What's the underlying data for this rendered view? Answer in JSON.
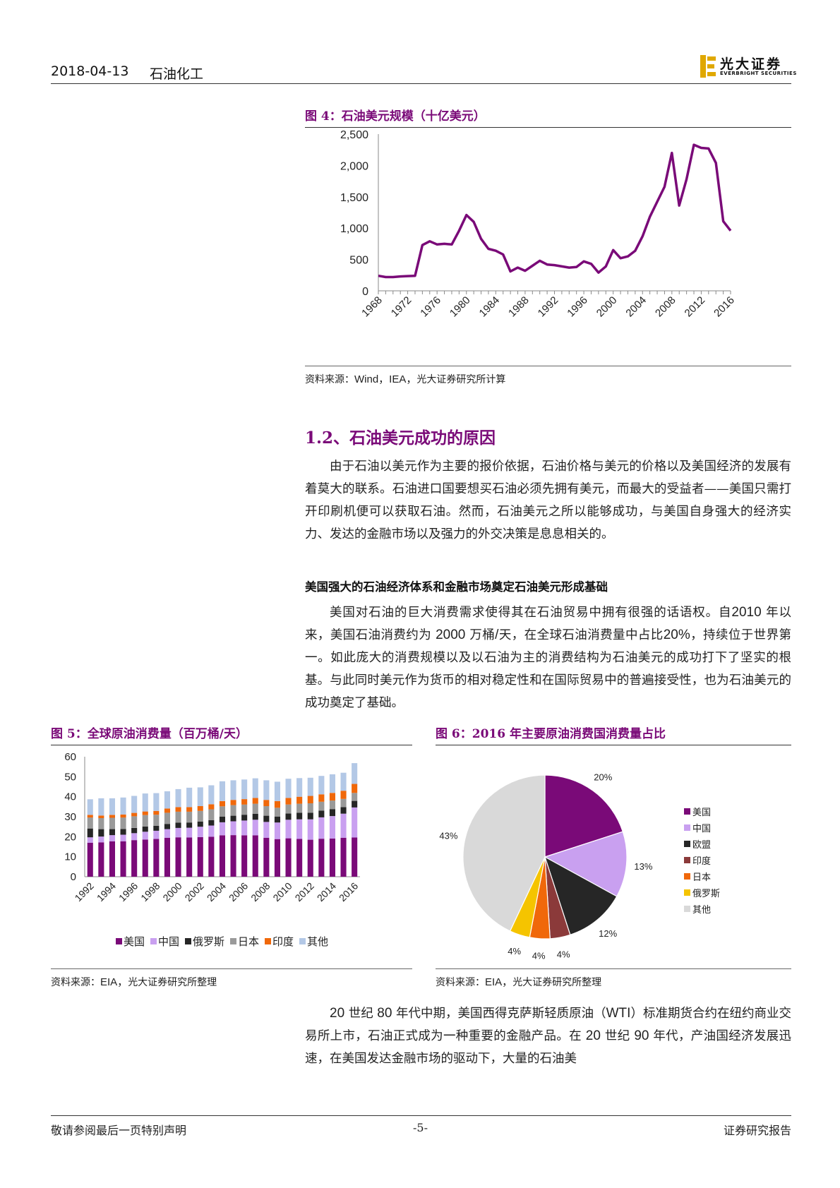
{
  "header": {
    "date": "2018-04-13",
    "sector": "石油化工",
    "logo_cn": "光大证券",
    "logo_en": "EVERBRIGHT SECURITIES"
  },
  "fig4": {
    "title": "图 4：石油美元规模（十亿美元）",
    "source_label": "资料来源：",
    "source_lat": "Wind，IEA，",
    "source_rest": "光大证券研究所计算",
    "chart_data": {
      "type": "line",
      "title": "",
      "xlabel": "",
      "ylabel": "",
      "ylim": [
        0,
        2500
      ],
      "yticks": [
        "0",
        "500",
        "1,000",
        "1,500",
        "2,000",
        "2,500"
      ],
      "xticks": [
        "1968",
        "1972",
        "1976",
        "1980",
        "1984",
        "1988",
        "1992",
        "1996",
        "2000",
        "2004",
        "2008",
        "2012",
        "2016"
      ],
      "color": "#7a0a78",
      "x": [
        1968,
        1969,
        1970,
        1971,
        1972,
        1973,
        1974,
        1975,
        1976,
        1977,
        1978,
        1979,
        1980,
        1981,
        1982,
        1983,
        1984,
        1985,
        1986,
        1987,
        1988,
        1989,
        1990,
        1991,
        1992,
        1993,
        1994,
        1995,
        1996,
        1997,
        1998,
        1999,
        2000,
        2001,
        2002,
        2003,
        2004,
        2005,
        2006,
        2007,
        2008,
        2009,
        2010,
        2011,
        2012,
        2013,
        2014,
        2015,
        2016
      ],
      "values": [
        240,
        220,
        220,
        230,
        235,
        240,
        730,
        790,
        740,
        750,
        740,
        960,
        1210,
        1100,
        830,
        670,
        640,
        580,
        310,
        370,
        320,
        400,
        480,
        420,
        410,
        390,
        370,
        380,
        470,
        430,
        290,
        390,
        650,
        520,
        550,
        640,
        870,
        1180,
        1420,
        1660,
        2200,
        1360,
        1780,
        2330,
        2280,
        2270,
        2040,
        1110,
        960
      ]
    }
  },
  "section": {
    "heading": "1.2、石油美元成功的原因",
    "para1": "由于石油以美元作为主要的报价依据，石油价格与美元的价格以及美国经济的发展有着莫大的联系。石油进口国要想买石油必须先拥有美元，而最大的受益者——美国只需打开印刷机便可以获取石油。然而，石油美元之所以能够成功，与美国自身强大的经济实力、发达的金融市场以及强力的外交决策是息息相关的。",
    "subheading": "美国强大的石油经济体系和金融市场奠定石油美元形成基础",
    "para2_a": "美国对石油的巨大消费需求使得其在石油贸易中拥有很强的话语权。自",
    "para2_b": "2010",
    "para2_c": " 年以来，美国石油消费约为 ",
    "para2_d": "2000",
    "para2_e": " 万桶",
    "para2_f": "/",
    "para2_g": "天，在全球石油消费量中占比",
    "para2_h": "20%",
    "para2_i": "，持续位于世界第一。如此庞大的消费规模以及以石油为主的消费结构为石油美元的成功打下了坚实的根基。与此同时美元作为货币的相对稳定性和在国际贸易中的普遍接受性，也为石油美元的成功奠定了基础。"
  },
  "fig5": {
    "title": "图 5：全球原油消费量（百万桶/天）",
    "source_label": "资料来源：",
    "source_lat": "EIA，",
    "source_rest": "光大证券研究所整理",
    "chart_data": {
      "type": "bar",
      "stacked": true,
      "ylim": [
        0,
        60
      ],
      "yticks": [
        "0",
        "10",
        "20",
        "30",
        "40",
        "50",
        "60"
      ],
      "categories": [
        "1992",
        "1993",
        "1994",
        "1995",
        "1996",
        "1997",
        "1998",
        "1999",
        "2000",
        "2001",
        "2002",
        "2003",
        "2004",
        "2005",
        "2006",
        "2007",
        "2008",
        "2009",
        "2010",
        "2011",
        "2012",
        "2013",
        "2014",
        "2015",
        "2016"
      ],
      "xticks": [
        "1992",
        "1994",
        "1996",
        "1998",
        "2000",
        "2002",
        "2004",
        "2006",
        "2008",
        "2010",
        "2012",
        "2014",
        "2016"
      ],
      "legend_position": "bottom",
      "series": [
        {
          "name": "美国",
          "color": "#7a0a78",
          "values": [
            17,
            17.2,
            17.7,
            17.7,
            18.3,
            18.6,
            18.9,
            19.5,
            19.7,
            19.6,
            19.8,
            20.0,
            20.7,
            20.8,
            20.7,
            20.7,
            19.5,
            18.8,
            19.2,
            18.9,
            18.5,
            19.0,
            19.1,
            19.5,
            19.6
          ]
        },
        {
          "name": "中国",
          "color": "#c9a0f0",
          "values": [
            2.7,
            2.9,
            3.1,
            3.3,
            3.5,
            3.9,
            4.1,
            4.3,
            4.7,
            4.9,
            5.2,
            5.6,
            6.5,
            6.9,
            7.4,
            7.8,
            7.9,
            8.3,
            9.3,
            9.8,
            10.2,
            10.7,
            11.2,
            12.0,
            15.0
          ]
        },
        {
          "name": "俄罗斯",
          "color": "#262626",
          "values": [
            4.4,
            3.7,
            3.0,
            2.9,
            2.6,
            2.6,
            2.5,
            2.6,
            2.6,
            2.6,
            2.6,
            2.7,
            2.8,
            2.8,
            2.9,
            3.0,
            3.1,
            3.0,
            3.1,
            3.3,
            3.3,
            3.3,
            3.5,
            3.3,
            3.3
          ]
        },
        {
          "name": "日本",
          "color": "#9a9a9a",
          "values": [
            5.5,
            5.5,
            5.7,
            5.7,
            5.8,
            5.7,
            5.5,
            5.6,
            5.5,
            5.4,
            5.3,
            5.4,
            5.2,
            5.3,
            5.1,
            5.0,
            4.8,
            4.4,
            4.5,
            4.5,
            4.7,
            4.5,
            4.3,
            4.1,
            4.0
          ]
        },
        {
          "name": "印度",
          "color": "#f0680a",
          "values": [
            1.3,
            1.3,
            1.4,
            1.5,
            1.7,
            1.8,
            1.9,
            2.1,
            2.3,
            2.3,
            2.4,
            2.5,
            2.6,
            2.6,
            2.7,
            2.9,
            3.1,
            3.3,
            3.3,
            3.5,
            3.7,
            3.7,
            3.8,
            4.1,
            4.5
          ]
        },
        {
          "name": "其他",
          "color": "#b3c8e6",
          "values": [
            7.8,
            8.6,
            8.3,
            8.5,
            8.5,
            9.0,
            8.9,
            8.6,
            9.0,
            9.7,
            9.4,
            9.5,
            9.9,
            9.8,
            9.8,
            9.8,
            9.8,
            9.7,
            9.6,
            9.3,
            9.1,
            9.2,
            9.3,
            9.0,
            10.4
          ]
        }
      ]
    }
  },
  "fig6": {
    "title": "图 6：2016 年主要原油消费国消费量占比",
    "source_label": "资料来源：",
    "source_lat": "EIA，",
    "source_rest": "光大证券研究所整理",
    "chart_data": {
      "type": "pie",
      "legend_position": "right",
      "series": [
        {
          "name": "美国",
          "color": "#7a0a78",
          "value": 20,
          "label": "20%"
        },
        {
          "name": "中国",
          "color": "#c9a0f0",
          "value": 13,
          "label": "13%"
        },
        {
          "name": "欧盟",
          "color": "#262626",
          "value": 12,
          "label": "12%"
        },
        {
          "name": "印度",
          "color": "#8b3a3a",
          "value": 4,
          "label": "4%"
        },
        {
          "name": "日本",
          "color": "#f0680a",
          "value": 4,
          "label": "4%"
        },
        {
          "name": "俄罗斯",
          "color": "#f5c400",
          "value": 4,
          "label": "4%"
        },
        {
          "name": "其他",
          "color": "#d9d9d9",
          "value": 43,
          "label": "43%"
        }
      ]
    }
  },
  "closing": {
    "p_a": "20",
    "p_b": " 世纪 ",
    "p_c": "80",
    "p_d": " 年代中期，美国西得克萨斯轻质原油（",
    "p_e": "WTI",
    "p_f": "）标准期货合约在纽约商业交易所上市，石油正式成为一种重要的金融产品。在 ",
    "p_g": "20",
    "p_h": " 世纪 ",
    "p_i": "90",
    "p_j": " 年代，产油国经济发展迅速，在美国发达金融市场的驱动下，大量的石油美"
  },
  "footer": {
    "left": "敬请参阅最后一页特别声明",
    "page": "-5-",
    "right": "证券研究报告"
  }
}
